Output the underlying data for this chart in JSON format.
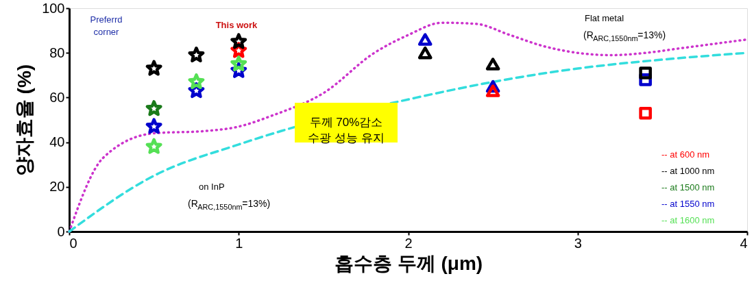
{
  "chart_data": {
    "type": "scatter",
    "xlabel": "흡수층 두께 (μm)",
    "ylabel": "양자효율 (%)",
    "xlim": [
      0,
      4
    ],
    "xticks": [
      0,
      1,
      2,
      3,
      4
    ],
    "ylim": [
      0,
      100
    ],
    "yticks": [
      0,
      20,
      40,
      60,
      80,
      100
    ],
    "grid": false,
    "legend": "bottom right",
    "annotations": [
      "Preferrd\ncorner",
      "This work",
      "두께 70%감소\n수광 성능 유지",
      "Flat metal",
      "(R$_{ARC,1550nm}$=13%)",
      "on InP",
      "(R$_{ARC,1550nm}$=13%)"
    ],
    "series": [
      {
        "type": "line",
        "color": "#cc33cc",
        "line_style": "dotted",
        "marker": "none",
        "x": [
          0,
          0.2,
          0.5,
          0.8,
          1.0,
          1.2,
          1.5,
          1.8,
          2.0,
          2.2,
          2.4,
          2.6,
          2.8,
          3.0,
          3.2,
          3.4,
          3.6,
          3.8,
          4.0
        ],
        "values": [
          0,
          33,
          44,
          45,
          47,
          52,
          62,
          80,
          88,
          93.5,
          93,
          88,
          83,
          80,
          79,
          80,
          82,
          84,
          86
        ]
      },
      {
        "type": "line",
        "color": "#33dddd",
        "line_style": "dashed",
        "marker": "none",
        "x": [
          0,
          0.5,
          1.0,
          1.25,
          2.05,
          2.5,
          3.0,
          3.5,
          4.0
        ],
        "values": [
          0,
          25,
          39,
          45,
          60,
          67,
          73,
          77,
          80
        ]
      },
      {
        "name": "-- at 600 nm",
        "color": "#ff0000",
        "marker": "star",
        "x": [
          1.0
        ],
        "values": [
          81
        ]
      },
      {
        "name": "-- at 1000 nm",
        "color": "#000000",
        "marker": "star",
        "x": [
          0.5,
          0.75,
          1.0
        ],
        "values": [
          73,
          79,
          85
        ]
      },
      {
        "name": "-- at 1500 nm",
        "color": "#1a7a1a",
        "marker": "star",
        "x": [
          0.5
        ],
        "values": [
          55
        ]
      },
      {
        "name": "-- at 1550 nm",
        "color": "#0000cc",
        "marker": "star",
        "x": [
          0.5,
          0.75,
          1.0
        ],
        "values": [
          47,
          63,
          72
        ]
      },
      {
        "name": "-- at 1600 nm",
        "color": "#55e055",
        "marker": "star",
        "x": [
          0.5,
          0.75,
          1.0
        ],
        "values": [
          38,
          67,
          75
        ]
      },
      {
        "color": "#0000cc",
        "marker": "triangle",
        "x": [
          2.1,
          2.5
        ],
        "values": [
          86,
          65
        ]
      },
      {
        "color": "#000000",
        "marker": "triangle",
        "x": [
          2.1,
          2.5
        ],
        "values": [
          80,
          75
        ]
      },
      {
        "color": "#ff0000",
        "marker": "triangle",
        "x": [
          2.5
        ],
        "values": [
          63
        ]
      },
      {
        "color": "#0000cc",
        "marker": "square",
        "x": [
          3.4
        ],
        "values": [
          68
        ]
      },
      {
        "color": "#000000",
        "marker": "square",
        "x": [
          3.4
        ],
        "values": [
          71
        ]
      },
      {
        "color": "#ff0000",
        "marker": "square",
        "x": [
          3.4
        ],
        "values": [
          53
        ]
      }
    ]
  }
}
